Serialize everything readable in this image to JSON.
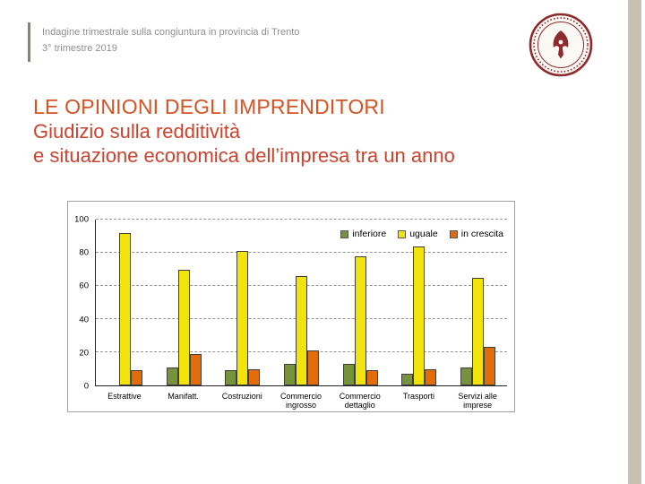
{
  "slide": {
    "header": {
      "line1": "Indagine trimestrale sulla congiuntura in provincia di Trento",
      "line2": "3° trimestre 2019"
    },
    "title": {
      "line1": "LE OPINIONI DEGLI IMPRENDITORI",
      "line2": "Giudizio sulla redditività",
      "line3": "e situazione economica dell’impresa tra un anno"
    },
    "logo": "university-of-trento-seal"
  },
  "colors": {
    "title": "#d35324",
    "subtitle": "#c9432e",
    "header_text": "#8f8f8f",
    "accent_rule": "#8c8274",
    "right_band": "#c8c0b2",
    "seal": "#8d2a2e"
  },
  "chart_data": {
    "type": "bar",
    "title": "",
    "xlabel": "",
    "ylabel": "",
    "categories": [
      "Estrattive",
      "Manifatt.",
      "Costruzioni",
      "Commercio ingrosso",
      "Commercio dettaglio",
      "Trasporti",
      "Servizi alle imprese"
    ],
    "series": [
      {
        "name": "inferiore",
        "color": "#76923c",
        "values": [
          0,
          11,
          9,
          13,
          13,
          7,
          11
        ]
      },
      {
        "name": "uguale",
        "color": "#f2e30a",
        "values": [
          92,
          70,
          81,
          66,
          78,
          84,
          65
        ]
      },
      {
        "name": "in crescita",
        "color": "#e36c0a",
        "values": [
          9,
          19,
          10,
          21,
          9,
          10,
          23
        ]
      }
    ],
    "ylim": [
      0,
      100
    ],
    "yticks": [
      0,
      20,
      40,
      60,
      80,
      100
    ],
    "grid": "horizontal-dashed",
    "legend_position": "top-right-inside"
  }
}
